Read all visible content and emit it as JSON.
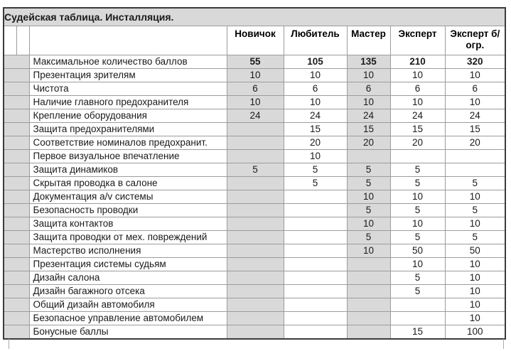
{
  "title": "Судейская таблица. Инсталляция.",
  "colors": {
    "shaded_fill": "#d9d9d9",
    "grid_line": "#9c9c9c",
    "outer_border": "#3b3b3b",
    "text_color": "#1a1a1a"
  },
  "table": {
    "columns": [
      "Новичок",
      "Любитель",
      "Мастер",
      "Эксперт",
      "Эксперт б/огр."
    ],
    "shaded_value_columns": [
      0,
      2
    ],
    "rows": [
      {
        "label": "Максимальное количество баллов",
        "bold": true,
        "values": [
          "55",
          "105",
          "135",
          "210",
          "320"
        ]
      },
      {
        "label": "Презентация зрителям",
        "values": [
          "10",
          "10",
          "10",
          "10",
          "10"
        ]
      },
      {
        "label": "Чистота",
        "values": [
          "6",
          "6",
          "6",
          "6",
          "6"
        ]
      },
      {
        "label": "Наличие главного предохранителя",
        "values": [
          "10",
          "10",
          "10",
          "10",
          "10"
        ]
      },
      {
        "label": "Крепление оборудования",
        "values": [
          "24",
          "24",
          "24",
          "24",
          "24"
        ]
      },
      {
        "label": "Защита предохранителями",
        "values": [
          "",
          "15",
          "15",
          "15",
          "15"
        ]
      },
      {
        "label": "Соответствие номиналов предохранит.",
        "values": [
          "",
          "20",
          "20",
          "20",
          "20"
        ]
      },
      {
        "label": "Первое визуальное впечатление",
        "values": [
          "",
          "10",
          "",
          "",
          ""
        ]
      },
      {
        "label": "Защита динамиков",
        "values": [
          "5",
          "5",
          "5",
          "5",
          ""
        ]
      },
      {
        "label": "Скрытая проводка в салоне",
        "values": [
          "",
          "5",
          "5",
          "5",
          "5"
        ]
      },
      {
        "label": "Документация a/v системы",
        "values": [
          "",
          "",
          "10",
          "10",
          "10"
        ]
      },
      {
        "label": "Безопасность проводки",
        "values": [
          "",
          "",
          "5",
          "5",
          "5"
        ]
      },
      {
        "label": "Защита контактов",
        "values": [
          "",
          "",
          "10",
          "10",
          "10"
        ]
      },
      {
        "label": "Защита проводки от мех. повреждений",
        "values": [
          "",
          "",
          "5",
          "5",
          "5"
        ]
      },
      {
        "label": "Мастерство исполнения",
        "values": [
          "",
          "",
          "10",
          "50",
          "50"
        ]
      },
      {
        "label": "Презентация системы судьям",
        "values": [
          "",
          "",
          "",
          "10",
          "10"
        ]
      },
      {
        "label": "Дизайн салона",
        "values": [
          "",
          "",
          "",
          "5",
          "10"
        ]
      },
      {
        "label": "Дизайн багажного отсека",
        "values": [
          "",
          "",
          "",
          "5",
          "10"
        ]
      },
      {
        "label": "Общий дизайн автомобиля",
        "values": [
          "",
          "",
          "",
          "",
          "10"
        ]
      },
      {
        "label": "Безопасное управление автомобилем",
        "values": [
          "",
          "",
          "",
          "",
          "10"
        ]
      },
      {
        "label": "Бонусные баллы",
        "values": [
          "",
          "",
          "",
          "15",
          "100"
        ]
      }
    ]
  }
}
